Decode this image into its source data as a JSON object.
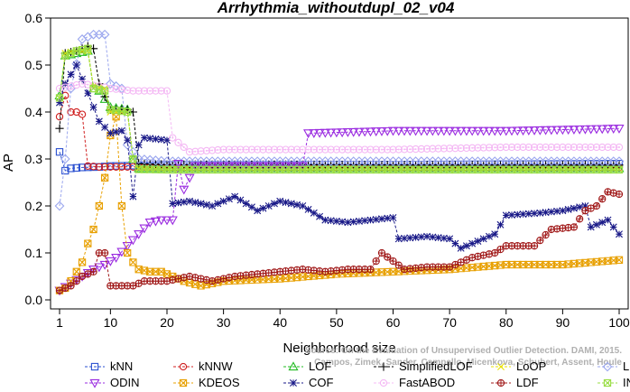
{
  "chart_data": {
    "type": "line",
    "title": "Arrhythmia_withoutdupl_02_v04",
    "xlabel": "Neighborhood size",
    "ylabel": "AP",
    "xlim": [
      1,
      100
    ],
    "ylim": [
      0.0,
      0.6
    ],
    "xticks": [
      1,
      10,
      20,
      30,
      40,
      50,
      60,
      70,
      80,
      90,
      100
    ],
    "yticks": [
      0.0,
      0.1,
      0.2,
      0.3,
      0.4,
      0.5,
      0.6
    ],
    "legend_position": "bottom",
    "watermark": "Source: On the Evaluation of Unsupervised Outlier Detection. DAMI, 2015.\nCampos, Zimek, Sander, Campello, Micenkova, Schubert, Assent, Houle",
    "series": [
      {
        "name": "kNN",
        "color": "#2a4fd0",
        "marker": "square",
        "points": [
          [
            1,
            0.315
          ],
          [
            2,
            0.275
          ],
          [
            3,
            0.28
          ],
          [
            5,
            0.282
          ],
          [
            8,
            0.283
          ],
          [
            10,
            0.285
          ],
          [
            15,
            0.286
          ],
          [
            20,
            0.287
          ],
          [
            30,
            0.288
          ],
          [
            40,
            0.288
          ],
          [
            60,
            0.288
          ],
          [
            80,
            0.289
          ],
          [
            100,
            0.29
          ]
        ]
      },
      {
        "name": "kNNW",
        "color": "#d02020",
        "marker": "circle",
        "points": [
          [
            1,
            0.39
          ],
          [
            2,
            0.435
          ],
          [
            3,
            0.4
          ],
          [
            4,
            0.4
          ],
          [
            5,
            0.395
          ],
          [
            6,
            0.285
          ],
          [
            8,
            0.283
          ],
          [
            10,
            0.283
          ],
          [
            15,
            0.283
          ],
          [
            20,
            0.282
          ],
          [
            40,
            0.282
          ],
          [
            70,
            0.282
          ],
          [
            100,
            0.282
          ]
        ]
      },
      {
        "name": "LOF",
        "color": "#22bb22",
        "marker": "triangle-up",
        "points": [
          [
            1,
            0.435
          ],
          [
            2,
            0.52
          ],
          [
            4,
            0.525
          ],
          [
            6,
            0.53
          ],
          [
            7,
            0.45
          ],
          [
            8,
            0.445
          ],
          [
            10,
            0.41
          ],
          [
            13,
            0.405
          ],
          [
            14,
            0.3
          ],
          [
            15,
            0.28
          ],
          [
            20,
            0.28
          ],
          [
            40,
            0.28
          ],
          [
            70,
            0.28
          ],
          [
            100,
            0.28
          ]
        ]
      },
      {
        "name": "SimplifiedLOF",
        "color": "#000000",
        "marker": "plus",
        "points": [
          [
            1,
            0.365
          ],
          [
            2,
            0.525
          ],
          [
            4,
            0.53
          ],
          [
            6,
            0.54
          ],
          [
            7,
            0.535
          ],
          [
            8,
            0.46
          ],
          [
            10,
            0.405
          ],
          [
            13,
            0.405
          ],
          [
            14,
            0.4
          ],
          [
            15,
            0.29
          ],
          [
            20,
            0.288
          ],
          [
            40,
            0.288
          ],
          [
            70,
            0.287
          ],
          [
            100,
            0.287
          ]
        ]
      },
      {
        "name": "LoOP",
        "color": "#e8e000",
        "marker": "cross",
        "points": [
          [
            1,
            0.43
          ],
          [
            2,
            0.525
          ],
          [
            4,
            0.53
          ],
          [
            6,
            0.53
          ],
          [
            7,
            0.455
          ],
          [
            9,
            0.45
          ],
          [
            10,
            0.4
          ],
          [
            13,
            0.4
          ],
          [
            14,
            0.3
          ],
          [
            15,
            0.28
          ],
          [
            20,
            0.278
          ],
          [
            40,
            0.278
          ],
          [
            70,
            0.278
          ],
          [
            100,
            0.278
          ]
        ]
      },
      {
        "name": "LDOF",
        "color": "#9aa6ee",
        "marker": "diamond",
        "points": [
          [
            1,
            0.2
          ],
          [
            2,
            0.3
          ],
          [
            3,
            0.45
          ],
          [
            5,
            0.555
          ],
          [
            7,
            0.565
          ],
          [
            9,
            0.565
          ],
          [
            10,
            0.46
          ],
          [
            12,
            0.45
          ],
          [
            13,
            0.33
          ],
          [
            15,
            0.3
          ],
          [
            20,
            0.295
          ],
          [
            40,
            0.295
          ],
          [
            70,
            0.295
          ],
          [
            100,
            0.295
          ]
        ]
      },
      {
        "name": "ODIN",
        "color": "#9a2be0",
        "marker": "triangle-down",
        "points": [
          [
            1,
            0.02
          ],
          [
            3,
            0.035
          ],
          [
            5,
            0.05
          ],
          [
            7,
            0.065
          ],
          [
            9,
            0.075
          ],
          [
            11,
            0.09
          ],
          [
            13,
            0.115
          ],
          [
            15,
            0.14
          ],
          [
            17,
            0.165
          ],
          [
            19,
            0.17
          ],
          [
            21,
            0.17
          ],
          [
            22,
            0.29
          ],
          [
            23,
            0.235
          ],
          [
            25,
            0.285
          ],
          [
            44,
            0.285
          ],
          [
            45,
            0.355
          ],
          [
            60,
            0.36
          ],
          [
            80,
            0.36
          ],
          [
            100,
            0.365
          ]
        ]
      },
      {
        "name": "KDEOS",
        "color": "#e8a000",
        "marker": "square-x",
        "points": [
          [
            1,
            0.02
          ],
          [
            2,
            0.025
          ],
          [
            3,
            0.04
          ],
          [
            4,
            0.06
          ],
          [
            5,
            0.08
          ],
          [
            6,
            0.12
          ],
          [
            7,
            0.15
          ],
          [
            8,
            0.2
          ],
          [
            9,
            0.26
          ],
          [
            10,
            0.35
          ],
          [
            11,
            0.39
          ],
          [
            12,
            0.2
          ],
          [
            13,
            0.1
          ],
          [
            14,
            0.08
          ],
          [
            15,
            0.065
          ],
          [
            17,
            0.06
          ],
          [
            19,
            0.06
          ],
          [
            21,
            0.05
          ],
          [
            23,
            0.04
          ],
          [
            26,
            0.03
          ],
          [
            30,
            0.04
          ],
          [
            40,
            0.045
          ],
          [
            50,
            0.055
          ],
          [
            60,
            0.06
          ],
          [
            70,
            0.065
          ],
          [
            80,
            0.075
          ],
          [
            90,
            0.075
          ],
          [
            100,
            0.085
          ]
        ]
      },
      {
        "name": "COF",
        "color": "#1a1a88",
        "marker": "asterisk",
        "points": [
          [
            1,
            0.42
          ],
          [
            2,
            0.46
          ],
          [
            4,
            0.5
          ],
          [
            6,
            0.44
          ],
          [
            8,
            0.38
          ],
          [
            10,
            0.355
          ],
          [
            12,
            0.36
          ],
          [
            13,
            0.34
          ],
          [
            14,
            0.22
          ],
          [
            15,
            0.33
          ],
          [
            16,
            0.345
          ],
          [
            20,
            0.34
          ],
          [
            21,
            0.205
          ],
          [
            24,
            0.21
          ],
          [
            28,
            0.2
          ],
          [
            32,
            0.22
          ],
          [
            36,
            0.19
          ],
          [
            40,
            0.21
          ],
          [
            44,
            0.2
          ],
          [
            48,
            0.17
          ],
          [
            52,
            0.165
          ],
          [
            56,
            0.17
          ],
          [
            60,
            0.175
          ],
          [
            61,
            0.13
          ],
          [
            66,
            0.135
          ],
          [
            70,
            0.13
          ],
          [
            72,
            0.11
          ],
          [
            78,
            0.14
          ],
          [
            80,
            0.18
          ],
          [
            86,
            0.185
          ],
          [
            90,
            0.19
          ],
          [
            94,
            0.2
          ],
          [
            95,
            0.155
          ],
          [
            98,
            0.17
          ],
          [
            100,
            0.14
          ]
        ]
      },
      {
        "name": "FastABOD",
        "color": "#f4b8f4",
        "marker": "circle-dot",
        "points": [
          [
            1,
            0.45
          ],
          [
            5,
            0.46
          ],
          [
            8,
            0.455
          ],
          [
            10,
            0.45
          ],
          [
            14,
            0.445
          ],
          [
            20,
            0.445
          ],
          [
            21,
            0.345
          ],
          [
            24,
            0.315
          ],
          [
            30,
            0.32
          ],
          [
            40,
            0.32
          ],
          [
            60,
            0.32
          ],
          [
            80,
            0.325
          ],
          [
            100,
            0.325
          ]
        ]
      },
      {
        "name": "LDF",
        "color": "#a01818",
        "marker": "circle-plus",
        "points": [
          [
            1,
            0.02
          ],
          [
            3,
            0.03
          ],
          [
            5,
            0.05
          ],
          [
            7,
            0.06
          ],
          [
            8,
            0.1
          ],
          [
            9,
            0.1
          ],
          [
            10,
            0.03
          ],
          [
            14,
            0.03
          ],
          [
            16,
            0.04
          ],
          [
            20,
            0.04
          ],
          [
            24,
            0.05
          ],
          [
            28,
            0.04
          ],
          [
            32,
            0.05
          ],
          [
            36,
            0.055
          ],
          [
            40,
            0.06
          ],
          [
            44,
            0.065
          ],
          [
            48,
            0.06
          ],
          [
            52,
            0.065
          ],
          [
            56,
            0.065
          ],
          [
            58,
            0.1
          ],
          [
            62,
            0.065
          ],
          [
            66,
            0.07
          ],
          [
            70,
            0.07
          ],
          [
            74,
            0.09
          ],
          [
            78,
            0.1
          ],
          [
            80,
            0.115
          ],
          [
            85,
            0.115
          ],
          [
            88,
            0.15
          ],
          [
            92,
            0.155
          ],
          [
            94,
            0.19
          ],
          [
            96,
            0.2
          ],
          [
            98,
            0.23
          ],
          [
            100,
            0.225
          ]
        ]
      },
      {
        "name": "INFLO",
        "color": "#99dd44",
        "marker": "square-x",
        "points": [
          [
            1,
            0.43
          ],
          [
            2,
            0.52
          ],
          [
            4,
            0.53
          ],
          [
            6,
            0.535
          ],
          [
            7,
            0.45
          ],
          [
            9,
            0.445
          ],
          [
            10,
            0.405
          ],
          [
            13,
            0.4
          ],
          [
            14,
            0.3
          ],
          [
            15,
            0.278
          ],
          [
            20,
            0.277
          ],
          [
            40,
            0.277
          ],
          [
            70,
            0.277
          ],
          [
            100,
            0.277
          ]
        ]
      }
    ]
  }
}
